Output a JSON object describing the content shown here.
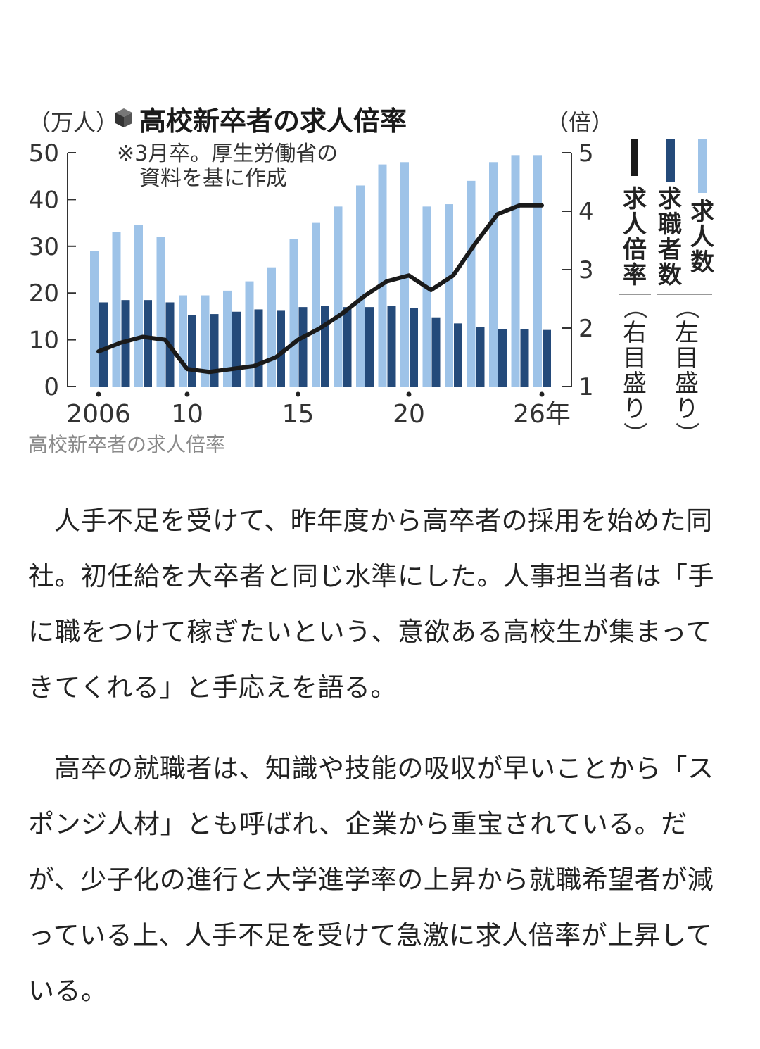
{
  "chart_data": {
    "type": "bar",
    "title": "高校新卒者の求人倍率",
    "left_unit": "（万人）",
    "right_unit": "（倍）",
    "note_lines": [
      "※3月卒。厚生労働省の",
      "資料を基に作成"
    ],
    "x": [
      2006,
      2007,
      2008,
      2009,
      2010,
      2011,
      2012,
      2013,
      2014,
      2015,
      2016,
      2017,
      2018,
      2019,
      2020,
      2021,
      2022,
      2023,
      2024,
      2025,
      2026
    ],
    "x_tick_labels": [
      {
        "x": 2006,
        "label": "2006"
      },
      {
        "x": 2010,
        "label": "10"
      },
      {
        "x": 2015,
        "label": "15"
      },
      {
        "x": 2020,
        "label": "20"
      },
      {
        "x": 2026,
        "label": "26年"
      }
    ],
    "y_left": {
      "ticks": [
        "0",
        "10",
        "20",
        "30",
        "40",
        "50"
      ],
      "ylim": [
        0,
        50
      ]
    },
    "y_right": {
      "ticks": [
        "1",
        "2",
        "3",
        "4",
        "5"
      ],
      "ylim": [
        1,
        5
      ]
    },
    "series": [
      {
        "name": "求人数",
        "axis_note": "（左目盛り）",
        "kind": "bar",
        "color": "#9ec3e8",
        "values": [
          29,
          33,
          34.5,
          32,
          19.5,
          19.5,
          20.5,
          22.5,
          25.5,
          31.5,
          35,
          38.5,
          43,
          47.5,
          48,
          38.5,
          39,
          44,
          48,
          49.5,
          49.5
        ]
      },
      {
        "name": "求職者数",
        "axis_note": "（左目盛り）",
        "kind": "bar",
        "color": "#244a7a",
        "values": [
          18,
          18.5,
          18.5,
          18,
          15.3,
          15.5,
          16,
          16.5,
          16.2,
          17,
          17.2,
          17,
          17,
          17.2,
          16.8,
          14.8,
          13.5,
          12.8,
          12.2,
          12.2,
          12.1
        ]
      },
      {
        "name": "求人倍率",
        "axis_note": "（右目盛り）",
        "kind": "line",
        "color": "#1a1a1a",
        "values": [
          1.6,
          1.75,
          1.85,
          1.8,
          1.3,
          1.25,
          1.3,
          1.35,
          1.5,
          1.8,
          2.0,
          2.25,
          2.55,
          2.8,
          2.9,
          2.65,
          2.9,
          3.45,
          3.95,
          4.1,
          4.1
        ]
      }
    ]
  },
  "caption": "高校新卒者の求人倍率",
  "article": {
    "paragraphs": [
      "人手不足を受けて、昨年度から高卒者の採用を始めた同社。初任給を大卒者と同じ水準にした。人事担当者は「手に職をつけて稼ぎたいという、意欲ある高校生が集まってきてくれる」と手応えを語る。",
      "高卒の就職者は、知識や技能の吸収が早いことから「スポンジ人材」とも呼ばれ、企業から重宝されている。だが、少子化の進行と大学進学率の上昇から就職希望者が減っている上、人手不足を受けて急激に求人倍率が上昇している。"
    ]
  }
}
